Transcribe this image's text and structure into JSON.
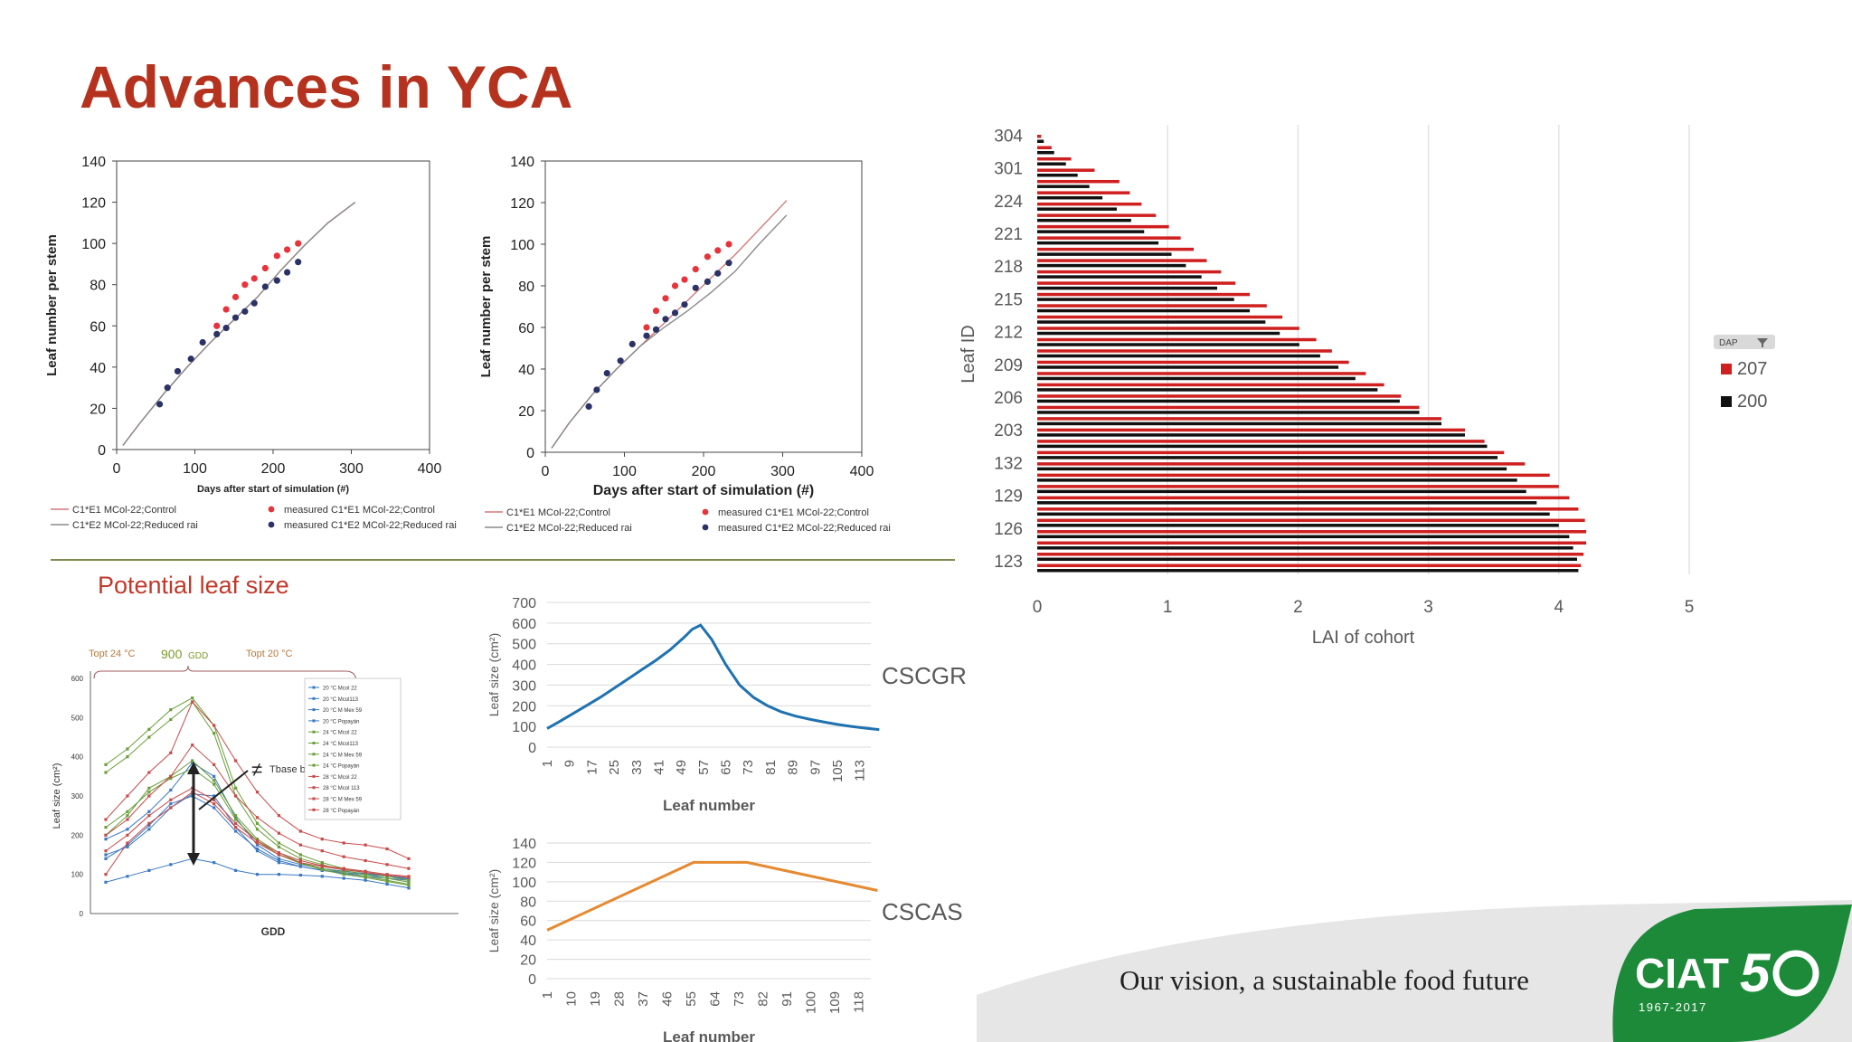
{
  "slide": {
    "title": "Advances in YCA",
    "section_title": "Potential leaf size",
    "tagline": "Our vision, a sustainable food future",
    "logo_text": "CIAT",
    "logo_years": "1967-2017",
    "colors": {
      "title": "#b5321f",
      "red": "#e8333a",
      "navy": "#2b3266",
      "blue": "#1f72b0",
      "orange": "#e58a32",
      "cohort_red": "#cf1f1f"
    }
  },
  "chart_data": [
    {
      "id": "leaf-number-1",
      "type": "line",
      "xlabel": "Days after start of simulation (#)",
      "ylabel": "Leaf number per stem",
      "xlim": [
        0,
        400
      ],
      "ylim": [
        0,
        140
      ],
      "xticks": [
        "0",
        "100",
        "200",
        "300",
        "400"
      ],
      "yticks": [
        "0",
        "20",
        "40",
        "60",
        "80",
        "100",
        "120",
        "140"
      ],
      "series": [
        {
          "name": "C1*E1 MCol-22;Control",
          "kind": "line",
          "color": "#d47a7a",
          "x": [
            8,
            30,
            60,
            90,
            120,
            150,
            180,
            210,
            240,
            270,
            305
          ],
          "y": [
            2,
            13,
            27,
            40,
            52,
            63,
            74,
            87,
            99,
            110,
            120
          ]
        },
        {
          "name": "C1*E2 MCol-22;Reduced rai",
          "kind": "line",
          "color": "#8a8a8a",
          "x": [
            8,
            30,
            60,
            90,
            120,
            150,
            180,
            210,
            240,
            270,
            305
          ],
          "y": [
            2,
            13,
            27,
            40,
            52,
            63,
            74,
            87,
            99,
            110,
            120
          ]
        },
        {
          "name": "measured C1*E1 MCol-22;Control",
          "kind": "scatter",
          "color": "#e8333a",
          "x": [
            128,
            140,
            152,
            164,
            176,
            190,
            205,
            218,
            232
          ],
          "y": [
            60,
            68,
            74,
            80,
            83,
            88,
            94,
            97,
            100
          ]
        },
        {
          "name": "measured C1*E2 MCol-22;Reduced rai",
          "kind": "scatter",
          "color": "#2b3266",
          "x": [
            55,
            65,
            78,
            95,
            110,
            128,
            140,
            152,
            164,
            176,
            190,
            205,
            218,
            232
          ],
          "y": [
            22,
            30,
            38,
            44,
            52,
            56,
            59,
            64,
            67,
            71,
            79,
            82,
            86,
            91
          ]
        }
      ]
    },
    {
      "id": "leaf-number-2",
      "type": "line",
      "xlabel": "Days after start of simulation (#)",
      "ylabel": "Leaf number per stem",
      "xlim": [
        0,
        400
      ],
      "ylim": [
        0,
        140
      ],
      "xticks": [
        "0",
        "100",
        "200",
        "300",
        "400"
      ],
      "yticks": [
        "0",
        "20",
        "40",
        "60",
        "80",
        "100",
        "120",
        "140"
      ],
      "series": [
        {
          "name": "C1*E1 MCol-22;Control",
          "kind": "line",
          "color": "#d47a7a",
          "x": [
            8,
            30,
            60,
            90,
            120,
            150,
            180,
            210,
            240,
            270,
            305
          ],
          "y": [
            2,
            14,
            28,
            40,
            51,
            62,
            73,
            84,
            95,
            107,
            121
          ]
        },
        {
          "name": "C1*E2 MCol-22;Reduced rai",
          "kind": "line",
          "color": "#8a8a8a",
          "x": [
            8,
            30,
            60,
            90,
            120,
            150,
            180,
            210,
            240,
            270,
            305
          ],
          "y": [
            2,
            14,
            28,
            40,
            51,
            60,
            68,
            77,
            87,
            100,
            114
          ]
        },
        {
          "name": "measured C1*E1 MCol-22;Control",
          "kind": "scatter",
          "color": "#e8333a",
          "x": [
            128,
            140,
            152,
            164,
            176,
            190,
            205,
            218,
            232
          ],
          "y": [
            60,
            68,
            74,
            80,
            83,
            88,
            94,
            97,
            100
          ]
        },
        {
          "name": "measured C1*E2 MCol-22;Reduced rai",
          "kind": "scatter",
          "color": "#2b3266",
          "x": [
            55,
            65,
            78,
            95,
            110,
            128,
            140,
            152,
            164,
            176,
            190,
            205,
            218,
            232
          ],
          "y": [
            22,
            30,
            38,
            44,
            52,
            56,
            59,
            64,
            67,
            71,
            79,
            82,
            86,
            91
          ]
        }
      ]
    },
    {
      "id": "lai-cohort",
      "type": "bar",
      "orientation": "horizontal",
      "xlabel": "LAI of cohort",
      "ylabel": "Leaf ID",
      "xlim": [
        0,
        5
      ],
      "xticks": [
        "0",
        "1",
        "2",
        "3",
        "4",
        "5"
      ],
      "ytick_labels": [
        "304",
        "301",
        "224",
        "221",
        "218",
        "215",
        "212",
        "209",
        "206",
        "203",
        "132",
        "129",
        "126",
        "123"
      ],
      "legend": {
        "title": "DAP",
        "placement": "right",
        "entries": [
          {
            "name": "207",
            "color": "#cf1f1f"
          },
          {
            "name": "200",
            "color": "#111111"
          }
        ]
      },
      "series": [
        {
          "name": "207",
          "color": "#cf1f1f",
          "values": [
            4.17,
            4.19,
            4.21,
            4.21,
            4.2,
            4.15,
            4.08,
            4.0,
            3.93,
            3.74,
            3.58,
            3.43,
            3.28,
            3.1,
            2.93,
            2.79,
            2.66,
            2.52,
            2.39,
            2.26,
            2.14,
            2.01,
            1.88,
            1.76,
            1.63,
            1.52,
            1.41,
            1.3,
            1.2,
            1.1,
            1.01,
            0.91,
            0.8,
            0.71,
            0.63,
            0.44,
            0.26,
            0.11,
            0.03
          ]
        },
        {
          "name": "200",
          "color": "#111111",
          "values": [
            4.15,
            4.14,
            4.11,
            4.08,
            4.0,
            3.93,
            3.83,
            3.75,
            3.68,
            3.6,
            3.53,
            3.45,
            3.28,
            3.1,
            2.93,
            2.78,
            2.61,
            2.44,
            2.31,
            2.17,
            2.01,
            1.86,
            1.75,
            1.63,
            1.51,
            1.38,
            1.26,
            1.14,
            1.03,
            0.93,
            0.82,
            0.72,
            0.61,
            0.5,
            0.4,
            0.31,
            0.22,
            0.13,
            0.05
          ]
        }
      ]
    },
    {
      "id": "gdd-leaf-size",
      "type": "line",
      "xlabel": "GDD",
      "ylabel": "Leaf size (cm²)",
      "ylim": [
        0,
        600
      ],
      "yticks": [
        "0",
        "100",
        "200",
        "300",
        "400",
        "500",
        "600"
      ],
      "annotations": {
        "topt_left": "Topt 24 °C",
        "topt_mid": "900",
        "topt_mid_unit": "GDD",
        "topt_right": "Topt 20 °C",
        "tbase": "Tbase by cultivar",
        "neq": "≠"
      },
      "series": [
        {
          "name": "20 °C Mcol 22",
          "color": "#3a78c2",
          "values": [
            150,
            170,
            215,
            270,
            305,
            300,
            220,
            160,
            130,
            120,
            110,
            105,
            100,
            95,
            90
          ]
        },
        {
          "name": "20 °C Mcol113",
          "color": "#3a78c2",
          "values": [
            190,
            215,
            260,
            315,
            385,
            350,
            245,
            175,
            140,
            125,
            115,
            108,
            102,
            95,
            88
          ]
        },
        {
          "name": "20 °C M Mex 59",
          "color": "#3a78c2",
          "values": [
            80,
            95,
            110,
            125,
            140,
            130,
            110,
            100,
            100,
            98,
            95,
            90,
            85,
            75,
            65
          ]
        },
        {
          "name": "20 °C Popayán",
          "color": "#3a78c2",
          "values": [
            140,
            175,
            225,
            280,
            300,
            270,
            210,
            165,
            135,
            120,
            110,
            102,
            95,
            90,
            85
          ]
        },
        {
          "name": "24 °C Mcol 22",
          "color": "#6a9e3a",
          "values": [
            380,
            420,
            470,
            520,
            550,
            480,
            320,
            230,
            180,
            150,
            130,
            115,
            105,
            95,
            85
          ]
        },
        {
          "name": "24 °C Mcol113",
          "color": "#6a9e3a",
          "values": [
            360,
            400,
            450,
            495,
            540,
            460,
            300,
            215,
            170,
            140,
            125,
            110,
            100,
            90,
            80
          ]
        },
        {
          "name": "24 °C M Mex 59",
          "color": "#6a9e3a",
          "values": [
            200,
            250,
            320,
            350,
            390,
            340,
            250,
            190,
            155,
            130,
            115,
            105,
            95,
            85,
            75
          ]
        },
        {
          "name": "24 °C Popayán",
          "color": "#6a9e3a",
          "values": [
            220,
            260,
            310,
            345,
            370,
            330,
            240,
            185,
            150,
            128,
            112,
            100,
            92,
            82,
            72
          ]
        },
        {
          "name": "28 °C Mcol 22",
          "color": "#c84a4a",
          "values": [
            240,
            300,
            360,
            410,
            540,
            480,
            390,
            310,
            250,
            210,
            190,
            180,
            175,
            165,
            140
          ]
        },
        {
          "name": "28 °C Mcol 113",
          "color": "#c84a4a",
          "values": [
            200,
            240,
            300,
            350,
            430,
            380,
            300,
            245,
            205,
            175,
            160,
            145,
            135,
            125,
            115
          ]
        },
        {
          "name": "28 °C M Mex 59",
          "color": "#c84a4a",
          "values": [
            100,
            180,
            230,
            270,
            310,
            280,
            220,
            180,
            150,
            130,
            120,
            112,
            105,
            98,
            92
          ]
        },
        {
          "name": "28 °C Popayán",
          "color": "#c84a4a",
          "values": [
            160,
            200,
            250,
            290,
            320,
            290,
            230,
            185,
            155,
            135,
            122,
            115,
            108,
            100,
            95
          ]
        }
      ]
    },
    {
      "id": "cscgr",
      "type": "line",
      "title": "CSCGR",
      "xlabel": "Leaf number",
      "ylabel": "Leaf size (cm²)",
      "ylim": [
        0,
        700
      ],
      "yticks": [
        "0",
        "100",
        "200",
        "300",
        "400",
        "500",
        "600",
        "700"
      ],
      "xticks": [
        "1",
        "9",
        "17",
        "25",
        "33",
        "41",
        "49",
        "57",
        "65",
        "73",
        "81",
        "89",
        "97",
        "105",
        "113"
      ],
      "series": [
        {
          "name": "CSCGR",
          "color": "#1f72b0",
          "x": [
            1,
            5,
            10,
            15,
            20,
            25,
            30,
            35,
            40,
            45,
            50,
            53,
            56,
            60,
            65,
            70,
            75,
            80,
            85,
            90,
            95,
            100,
            105,
            110,
            115,
            120
          ],
          "y": [
            90,
            120,
            160,
            200,
            240,
            285,
            330,
            375,
            420,
            470,
            530,
            570,
            590,
            520,
            400,
            300,
            240,
            200,
            170,
            150,
            135,
            122,
            110,
            100,
            92,
            85
          ]
        }
      ]
    },
    {
      "id": "cscas",
      "type": "line",
      "title": "CSCAS",
      "xlabel": "Leaf number",
      "ylabel": "Leaf size (cm²)",
      "ylim": [
        0,
        140
      ],
      "yticks": [
        "0",
        "20",
        "40",
        "60",
        "80",
        "100",
        "120",
        "140"
      ],
      "xticks": [
        "1",
        "10",
        "19",
        "28",
        "37",
        "46",
        "55",
        "64",
        "73",
        "82",
        "91",
        "100",
        "109",
        "118"
      ],
      "series": [
        {
          "name": "CSCAS",
          "color": "#e58a32",
          "x": [
            1,
            56,
            76,
            125
          ],
          "y": [
            50,
            120,
            120,
            91
          ]
        }
      ]
    }
  ]
}
